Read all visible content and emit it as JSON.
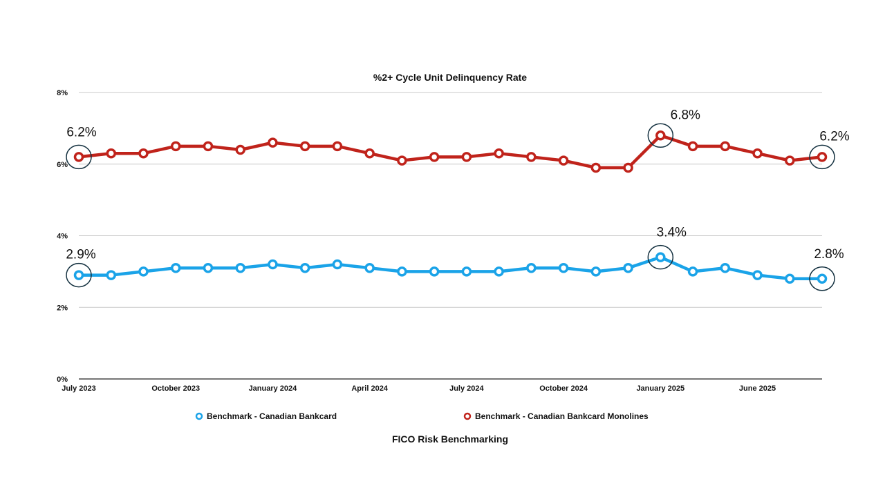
{
  "chart_data": {
    "type": "line",
    "title": "%2+ Cycle Unit Delinquency Rate",
    "source": "FICO Risk Benchmarking",
    "xlabel": "",
    "ylabel": "",
    "ylim": [
      0,
      8
    ],
    "yticks": [
      "0%",
      "2%",
      "4%",
      "6%",
      "8%"
    ],
    "grid": true,
    "legend_position": "bottom",
    "x_tick_labels": [
      {
        "index": 0,
        "label": "July 2023"
      },
      {
        "index": 3,
        "label": "October 2023"
      },
      {
        "index": 6,
        "label": "January 2024"
      },
      {
        "index": 9,
        "label": "April 2024"
      },
      {
        "index": 12,
        "label": "July 2024"
      },
      {
        "index": 15,
        "label": "October 2024"
      },
      {
        "index": 18,
        "label": "January 2025"
      },
      {
        "index": 21,
        "label": "June 2025"
      }
    ],
    "series": [
      {
        "name": "Benchmark - Canadian Bankcard",
        "color": "#1aa3e8",
        "values": [
          2.9,
          2.9,
          3.0,
          3.1,
          3.1,
          3.1,
          3.2,
          3.1,
          3.2,
          3.1,
          3.0,
          3.0,
          3.0,
          3.0,
          3.1,
          3.1,
          3.0,
          3.1,
          3.4,
          3.0,
          3.1,
          2.9,
          2.8,
          2.8
        ],
        "annotations": [
          {
            "index": 0,
            "label": "2.9%"
          },
          {
            "index": 18,
            "label": "3.4%"
          },
          {
            "index": 23,
            "label": "2.8%"
          }
        ]
      },
      {
        "name": "Benchmark - Canadian Bankcard Monolines",
        "color": "#c0231b",
        "values": [
          6.2,
          6.3,
          6.3,
          6.5,
          6.5,
          6.4,
          6.6,
          6.5,
          6.5,
          6.3,
          6.1,
          6.2,
          6.2,
          6.3,
          6.2,
          6.1,
          5.9,
          5.9,
          6.8,
          6.5,
          6.5,
          6.3,
          6.1,
          6.2
        ],
        "annotations": [
          {
            "index": 0,
            "label": "6.2%"
          },
          {
            "index": 18,
            "label": "6.8%"
          },
          {
            "index": 23,
            "label": "6.2%"
          }
        ]
      }
    ]
  }
}
